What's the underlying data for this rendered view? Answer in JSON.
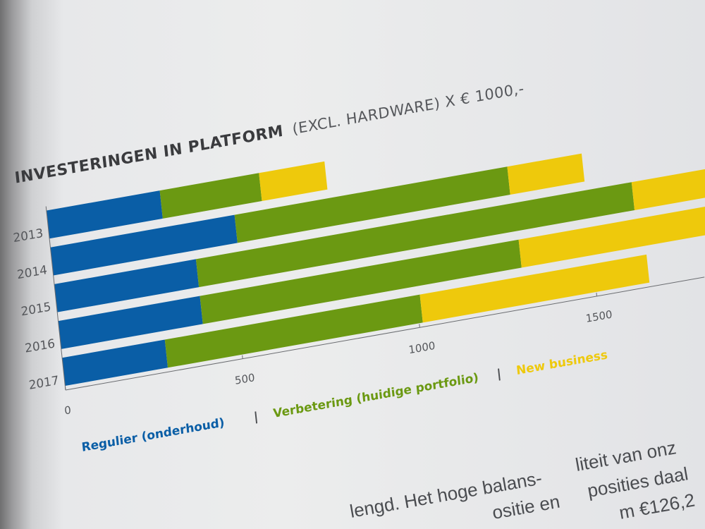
{
  "chart_data": {
    "type": "bar",
    "orientation": "horizontal",
    "stacked": true,
    "title": "INVESTERINGEN IN PLATFORM",
    "subtitle": "(EXCL. HARDWARE) X € 1000,-",
    "categories": [
      "2013",
      "2014",
      "2015",
      "2016",
      "2017"
    ],
    "series": [
      {
        "name": "Regulier (onderhoud)",
        "color": "#0a5ea6",
        "values": [
          320,
          520,
          400,
          400,
          290
        ]
      },
      {
        "name": "Verbetering (huidige portfolio)",
        "color": "#6b9912",
        "values": [
          280,
          770,
          1230,
          900,
          720
        ]
      },
      {
        "name": "New business",
        "color": "#eec90c",
        "values": [
          185,
          210,
          420,
          700,
          640
        ]
      }
    ],
    "xticks": [
      "0",
      "500",
      "1000",
      "1500"
    ],
    "xtick_values": [
      0,
      500,
      1000,
      1500
    ],
    "xlim": [
      0,
      2000
    ],
    "xlabel": "",
    "ylabel": "",
    "grid": false,
    "legend_placement": "bottom",
    "legend_separator": "|"
  },
  "body_text": {
    "col1": [
      "lengd. Het hoge balans-",
      "ositie  en"
    ],
    "col2": [
      "liteit van onz",
      "posities daal",
      "m €126,2"
    ]
  }
}
